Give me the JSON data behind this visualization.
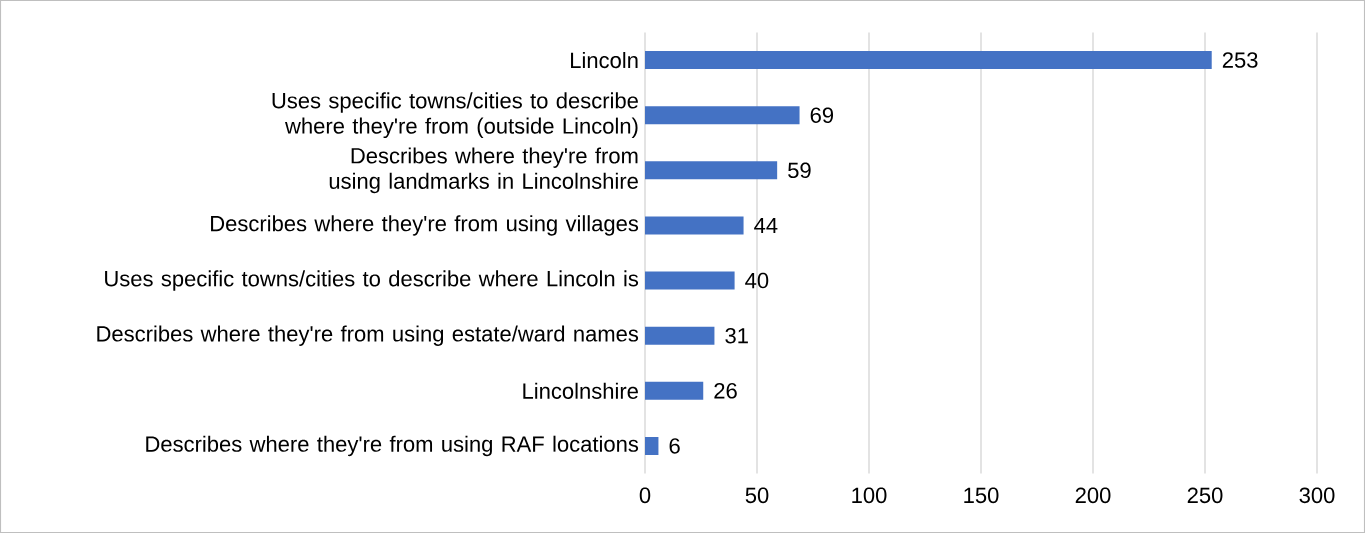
{
  "chart_data": {
    "type": "bar",
    "orientation": "horizontal",
    "categories": [
      "Lincoln",
      "Uses specific towns/cities to describe where they're from (outside Lincoln)",
      "Describes where they're from using landmarks in Lincolnshire",
      "Describes where they're from using villages",
      "Uses specific towns/cities to describe where Lincoln is",
      "Describes where they're from using estate/ward names",
      "Lincolnshire",
      "Describes where they're from using RAF locations"
    ],
    "values": [
      253,
      69,
      59,
      44,
      40,
      31,
      26,
      6
    ],
    "color": "#4472c4",
    "xlim": [
      0,
      300
    ],
    "xticks": [
      0,
      50,
      100,
      150,
      200,
      250,
      300
    ],
    "grid": "x",
    "data_labels": true
  }
}
